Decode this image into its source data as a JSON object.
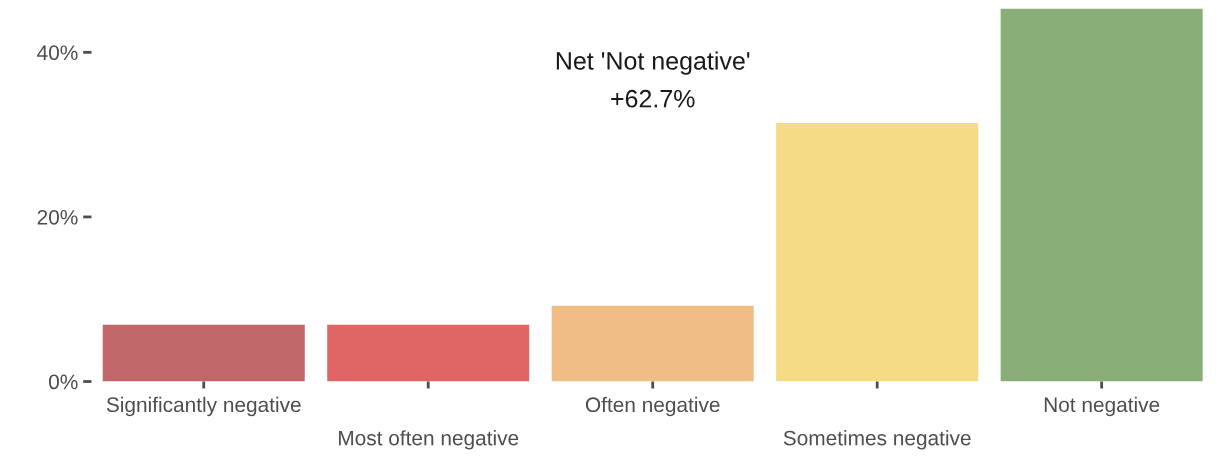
{
  "chart_data": {
    "type": "bar",
    "categories": [
      "Significantly negative",
      "Most often negative",
      "Often negative",
      "Sometimes negative",
      "Not negative"
    ],
    "values": [
      6.9,
      6.9,
      9.2,
      31.4,
      45.3
    ],
    "colors": [
      "#c0676a",
      "#e06666",
      "#f0bd86",
      "#f5db85",
      "#8aae78"
    ],
    "ylim": [
      0,
      45.5
    ],
    "yticks": [
      {
        "value": 0,
        "label": "0%"
      },
      {
        "value": 20,
        "label": "20%"
      },
      {
        "value": 40,
        "label": "40%"
      }
    ],
    "annotations": [
      "Net 'Not negative'\n+62.7%"
    ],
    "grid": false,
    "legend": false
  }
}
